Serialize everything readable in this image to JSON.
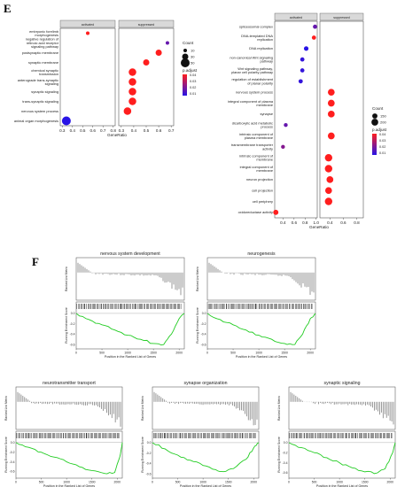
{
  "panel_e_letter": "E",
  "panel_f_letter": "F",
  "chart_data": [
    {
      "type": "scatter",
      "panel": "E-left",
      "facets": [
        "activated",
        "suppressed"
      ],
      "xlabel": "GeneRatio",
      "categories": [
        "embryonic forelimb morphogenesis",
        "negative regulation of retinoic acid receptor signaling pathway",
        "postsynaptic membrane",
        "synaptic membrane",
        "chemical synaptic transmission",
        "anterograde trans-synaptic signaling",
        "synaptic signaling",
        "trans-synaptic signaling",
        "nervous system process",
        "animal organ morphogenesis"
      ],
      "points": [
        {
          "facet": "activated",
          "term": "embryonic forelimb morphogenesis",
          "x": 0.55,
          "count": 10,
          "p_adjust": 0.045
        },
        {
          "facet": "suppressed",
          "term": "negative regulation of retinoic acid receptor signaling pathway",
          "x": 0.67,
          "count": 10,
          "p_adjust": 0.02
        },
        {
          "facet": "suppressed",
          "term": "postsynaptic membrane",
          "x": 0.6,
          "count": 30,
          "p_adjust": 0.045
        },
        {
          "facet": "suppressed",
          "term": "synaptic membrane",
          "x": 0.5,
          "count": 30,
          "p_adjust": 0.045
        },
        {
          "facet": "suppressed",
          "term": "chemical synaptic transmission",
          "x": 0.39,
          "count": 40,
          "p_adjust": 0.045
        },
        {
          "facet": "suppressed",
          "term": "anterograde trans-synaptic signaling",
          "x": 0.39,
          "count": 40,
          "p_adjust": 0.045
        },
        {
          "facet": "suppressed",
          "term": "synaptic signaling",
          "x": 0.39,
          "count": 40,
          "p_adjust": 0.045
        },
        {
          "facet": "suppressed",
          "term": "trans-synaptic signaling",
          "x": 0.39,
          "count": 40,
          "p_adjust": 0.045
        },
        {
          "facet": "suppressed",
          "term": "nervous system process",
          "x": 0.35,
          "count": 40,
          "p_adjust": 0.045
        },
        {
          "facet": "activated",
          "term": "animal organ morphogenesis",
          "x": 0.34,
          "count": 50,
          "p_adjust": 0.01
        }
      ],
      "x_ticks_activated": [
        "0.3",
        "0.4",
        "0.5",
        "0.6",
        "0.7",
        "0.8"
      ],
      "x_ticks_suppressed": [
        "0.3",
        "0.4",
        "0.5",
        "0.6",
        "0.7"
      ],
      "xlim_activated": [
        0.28,
        0.82
      ],
      "xlim_suppressed": [
        0.28,
        0.72
      ],
      "legend": {
        "count_title": "Count",
        "count_labels": [
          "10",
          "30",
          "50"
        ],
        "count_values": [
          10,
          30,
          50
        ],
        "padj_title": "p.adjust",
        "padj_labels": [
          "0.04",
          "0.03",
          "0.02",
          "0.01"
        ]
      }
    },
    {
      "type": "scatter",
      "panel": "E-right",
      "facets": [
        "activated",
        "suppressed"
      ],
      "xlabel": "GeneRatio",
      "categories": [
        "spliceosomal complex",
        "DNA-templated DNA replication",
        "DNA replication",
        "non-canonical Wnt signaling pathway",
        "Wnt signaling pathway, planar cell polarity pathway",
        "regulation of establishment of planar polarity",
        "nervous system process",
        "integral component of plasma membrane",
        "synapse",
        "dicarboxylic acid metabolic process",
        "intrinsic component of plasma membrane",
        "transmembrane transporter activity",
        "intrinsic component of membrane",
        "integral component of membrane",
        "neuron projection",
        "cell projection",
        "cell periphery",
        "oxidoreductase activity"
      ],
      "points": [
        {
          "facet": "activated",
          "term": "spliceosomal complex",
          "x": 0.98,
          "count": 120,
          "p_adjust": 0.02
        },
        {
          "facet": "activated",
          "term": "DNA-templated DNA replication",
          "x": 0.96,
          "count": 120,
          "p_adjust": 0.045
        },
        {
          "facet": "activated",
          "term": "DNA replication",
          "x": 0.82,
          "count": 130,
          "p_adjust": 0.01
        },
        {
          "facet": "activated",
          "term": "non-canonical Wnt signaling pathway",
          "x": 0.75,
          "count": 120,
          "p_adjust": 0.012
        },
        {
          "facet": "activated",
          "term": "Wnt signaling pathway, planar cell polarity pathway",
          "x": 0.75,
          "count": 120,
          "p_adjust": 0.012
        },
        {
          "facet": "activated",
          "term": "regulation of establishment of planar polarity",
          "x": 0.72,
          "count": 120,
          "p_adjust": 0.012
        },
        {
          "facet": "suppressed",
          "term": "nervous system process",
          "x": 0.42,
          "count": 200,
          "p_adjust": 0.045
        },
        {
          "facet": "suppressed",
          "term": "integral component of plasma membrane",
          "x": 0.42,
          "count": 200,
          "p_adjust": 0.045
        },
        {
          "facet": "suppressed",
          "term": "synapse",
          "x": 0.42,
          "count": 200,
          "p_adjust": 0.045
        },
        {
          "facet": "activated",
          "term": "dicarboxylic acid metabolic process",
          "x": 0.45,
          "count": 110,
          "p_adjust": 0.02
        },
        {
          "facet": "suppressed",
          "term": "intrinsic component of plasma membrane",
          "x": 0.42,
          "count": 200,
          "p_adjust": 0.045
        },
        {
          "facet": "activated",
          "term": "transmembrane transporter activity",
          "x": 0.4,
          "count": 110,
          "p_adjust": 0.025
        },
        {
          "facet": "suppressed",
          "term": "intrinsic component of membrane",
          "x": 0.38,
          "count": 220,
          "p_adjust": 0.045
        },
        {
          "facet": "suppressed",
          "term": "integral component of membrane",
          "x": 0.38,
          "count": 220,
          "p_adjust": 0.045
        },
        {
          "facet": "suppressed",
          "term": "neuron projection",
          "x": 0.4,
          "count": 200,
          "p_adjust": 0.045
        },
        {
          "facet": "suppressed",
          "term": "cell projection",
          "x": 0.38,
          "count": 200,
          "p_adjust": 0.045
        },
        {
          "facet": "suppressed",
          "term": "cell periphery",
          "x": 0.38,
          "count": 220,
          "p_adjust": 0.045
        },
        {
          "facet": "activated",
          "term": "oxidoreductase activity",
          "x": 0.27,
          "count": 150,
          "p_adjust": 0.045
        }
      ],
      "x_ticks_activated": [
        "0.4",
        "0.6",
        "0.8",
        "1.0"
      ],
      "x_ticks_suppressed": [
        "0.4",
        "0.6",
        "0.8"
      ],
      "xlim_activated": [
        0.25,
        1.02
      ],
      "xlim_suppressed": [
        0.25,
        0.9
      ],
      "legend": {
        "count_title": "Count",
        "count_labels": [
          "150",
          "200"
        ],
        "count_values": [
          150,
          200
        ],
        "padj_title": "p.adjust",
        "padj_labels": [
          "0.04",
          "0.03",
          "0.02",
          "0.01"
        ]
      }
    },
    {
      "type": "line",
      "panel": "F",
      "plot_type": "GSEA enrichment plot",
      "xlabel": "Position in the Ranked List of Genes",
      "ylabel_top": "Ranked List Metric",
      "ylabel_bottom": "Running Enrichment Score",
      "x_ticks": [
        "0",
        "500",
        "1000",
        "1500",
        "2000"
      ],
      "plots": [
        {
          "title": "nervous system development",
          "es_x": [
            0,
            250,
            500,
            750,
            1000,
            1250,
            1500,
            1700,
            1850,
            2000,
            2100
          ],
          "es_y": [
            0,
            -0.12,
            -0.22,
            -0.32,
            -0.42,
            -0.5,
            -0.58,
            -0.6,
            -0.4,
            -0.1,
            0
          ],
          "es_min": -0.6,
          "es_ticks": [
            "0.0",
            "-0.2",
            "-0.4",
            "-0.6"
          ]
        },
        {
          "title": "neurogenesis",
          "es_x": [
            0,
            250,
            500,
            750,
            1000,
            1250,
            1500,
            1700,
            1850,
            2000,
            2100
          ],
          "es_y": [
            0,
            -0.12,
            -0.22,
            -0.32,
            -0.42,
            -0.5,
            -0.58,
            -0.6,
            -0.4,
            -0.1,
            0
          ],
          "es_min": -0.6,
          "es_ticks": [
            "0.0",
            "-0.2",
            "-0.4",
            "-0.6"
          ]
        },
        {
          "title": "neurotransmitter transport",
          "es_x": [
            0,
            250,
            500,
            750,
            1000,
            1250,
            1500,
            1750,
            1950,
            2050,
            2100
          ],
          "es_y": [
            0,
            -0.1,
            -0.2,
            -0.3,
            -0.4,
            -0.5,
            -0.58,
            -0.64,
            -0.62,
            -0.3,
            0
          ],
          "es_min": -0.65,
          "es_ticks": [
            "0.0",
            "-0.2",
            "-0.4",
            "-0.6"
          ]
        },
        {
          "title": "synapse organization",
          "es_x": [
            0,
            250,
            500,
            750,
            1000,
            1250,
            1400,
            1600,
            1850,
            2000,
            2100
          ],
          "es_y": [
            0,
            -0.12,
            -0.24,
            -0.34,
            -0.44,
            -0.52,
            -0.56,
            -0.5,
            -0.32,
            -0.1,
            0
          ],
          "es_min": -0.6,
          "es_ticks": [
            "0.0",
            "-0.2",
            "-0.4",
            "-0.6"
          ]
        },
        {
          "title": "synaptic signaling",
          "es_x": [
            0,
            250,
            500,
            750,
            1000,
            1250,
            1500,
            1750,
            1900,
            2050,
            2100
          ],
          "es_y": [
            0,
            -0.1,
            -0.2,
            -0.3,
            -0.4,
            -0.5,
            -0.58,
            -0.6,
            -0.52,
            -0.2,
            0
          ],
          "es_min": -0.62,
          "es_ticks": [
            "0.0",
            "-0.2",
            "-0.4",
            "-0.6"
          ]
        }
      ]
    }
  ]
}
